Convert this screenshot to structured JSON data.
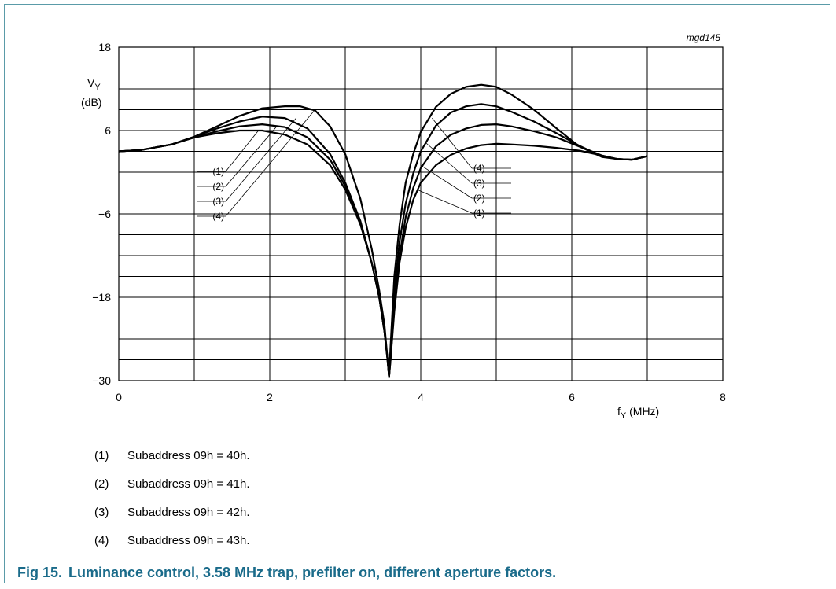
{
  "chart_data": {
    "type": "line",
    "code": "mgd145",
    "ylabel": "VY",
    "ylabel_main": "V",
    "ylabel_sub": "Y",
    "yunit": "(dB)",
    "xlabel_main": "f",
    "xlabel_sub": "Y",
    "xunit": " (MHz)",
    "xlim": [
      0,
      8
    ],
    "ylim": [
      -30,
      18
    ],
    "xticks": [
      "0",
      "2",
      "4",
      "6",
      "8"
    ],
    "yticks": [
      "18",
      "6",
      "−6",
      "−18",
      "−30"
    ],
    "grid": true,
    "series": [
      {
        "name": "(1)",
        "x": [
          0,
          0.3,
          0.7,
          1.0,
          1.3,
          1.6,
          1.9,
          2.2,
          2.5,
          2.8,
          3.0,
          3.2,
          3.35,
          3.45,
          3.52,
          3.56,
          3.58,
          3.6,
          3.65,
          3.72,
          3.8,
          3.9,
          4.0,
          4.2,
          4.4,
          4.6,
          4.8,
          5.0,
          5.2,
          5.5,
          5.8,
          6.1,
          6.4,
          6.6,
          6.8,
          7.0
        ],
        "y": [
          3,
          3.2,
          4.0,
          5.0,
          5.6,
          6.0,
          6.0,
          5.4,
          4.0,
          1.0,
          -2.5,
          -7.5,
          -13,
          -18,
          -23,
          -27,
          -29.5,
          -27,
          -20,
          -13,
          -8,
          -4,
          -1.5,
          1.0,
          2.5,
          3.4,
          3.9,
          4.1,
          4.0,
          3.8,
          3.5,
          3.1,
          2.4,
          1.9,
          1.8,
          2.3
        ]
      },
      {
        "name": "(2)",
        "x": [
          0,
          0.3,
          0.7,
          1.0,
          1.3,
          1.6,
          1.9,
          2.2,
          2.5,
          2.8,
          3.0,
          3.2,
          3.35,
          3.45,
          3.52,
          3.56,
          3.58,
          3.6,
          3.65,
          3.72,
          3.8,
          3.9,
          4.0,
          4.2,
          4.4,
          4.6,
          4.8,
          5.0,
          5.2,
          5.5,
          5.8,
          6.1,
          6.4,
          6.6,
          6.8,
          7.0
        ],
        "y": [
          3,
          3.2,
          4.0,
          5.0,
          5.9,
          6.6,
          6.9,
          6.5,
          5.0,
          1.8,
          -2.0,
          -7.3,
          -13,
          -18,
          -23,
          -27,
          -29.5,
          -27,
          -19,
          -12,
          -6.5,
          -2.3,
          0.6,
          3.7,
          5.4,
          6.3,
          6.8,
          6.9,
          6.6,
          5.9,
          5.0,
          3.7,
          2.4,
          1.9,
          1.8,
          2.3
        ]
      },
      {
        "name": "(3)",
        "x": [
          0,
          0.3,
          0.7,
          1.0,
          1.3,
          1.6,
          1.9,
          2.2,
          2.5,
          2.8,
          3.0,
          3.2,
          3.35,
          3.45,
          3.52,
          3.56,
          3.58,
          3.6,
          3.65,
          3.72,
          3.8,
          3.9,
          4.0,
          4.2,
          4.4,
          4.6,
          4.8,
          5.0,
          5.2,
          5.5,
          5.8,
          6.1,
          6.4,
          6.6,
          6.8,
          7.0
        ],
        "y": [
          3,
          3.2,
          4.0,
          5.1,
          6.3,
          7.3,
          8.0,
          7.8,
          6.3,
          2.6,
          -1.5,
          -7.0,
          -13,
          -18,
          -23,
          -27,
          -29.5,
          -26,
          -17,
          -10,
          -4.5,
          -0.2,
          3.0,
          6.7,
          8.6,
          9.5,
          9.8,
          9.5,
          8.7,
          7.3,
          5.6,
          3.8,
          2.3,
          1.9,
          1.8,
          2.3
        ]
      },
      {
        "name": "(4)",
        "x": [
          0,
          0.3,
          0.7,
          1.0,
          1.3,
          1.6,
          1.9,
          2.2,
          2.4,
          2.6,
          2.8,
          3.0,
          3.2,
          3.35,
          3.45,
          3.52,
          3.56,
          3.58,
          3.6,
          3.65,
          3.72,
          3.8,
          3.9,
          4.0,
          4.2,
          4.4,
          4.6,
          4.8,
          5.0,
          5.2,
          5.5,
          5.8,
          6.1,
          6.4,
          6.6,
          6.8,
          7.0
        ],
        "y": [
          3,
          3.2,
          4.0,
          5.1,
          6.6,
          8.1,
          9.2,
          9.5,
          9.5,
          8.9,
          6.6,
          2.6,
          -3.8,
          -11,
          -17,
          -22,
          -27,
          -29.5,
          -25,
          -15,
          -7.5,
          -1.5,
          2.6,
          5.8,
          9.4,
          11.3,
          12.3,
          12.6,
          12.3,
          11.2,
          9.0,
          6.3,
          3.7,
          2.2,
          1.9,
          1.8,
          2.3
        ]
      }
    ],
    "left_labels": [
      "(1)",
      "(2)",
      "(3)",
      "(4)"
    ],
    "right_labels": [
      "(4)",
      "(3)",
      "(2)",
      "(1)"
    ]
  },
  "legend": [
    {
      "num": "(1)",
      "text": "Subaddress 09h = 40h."
    },
    {
      "num": "(2)",
      "text": "Subaddress 09h = 41h."
    },
    {
      "num": "(3)",
      "text": "Subaddress 09h = 42h."
    },
    {
      "num": "(4)",
      "text": "Subaddress 09h = 43h."
    }
  ],
  "caption": {
    "fig": "Fig 15.",
    "text": "Luminance control, 3.58 MHz trap, prefilter on, different aperture factors."
  }
}
